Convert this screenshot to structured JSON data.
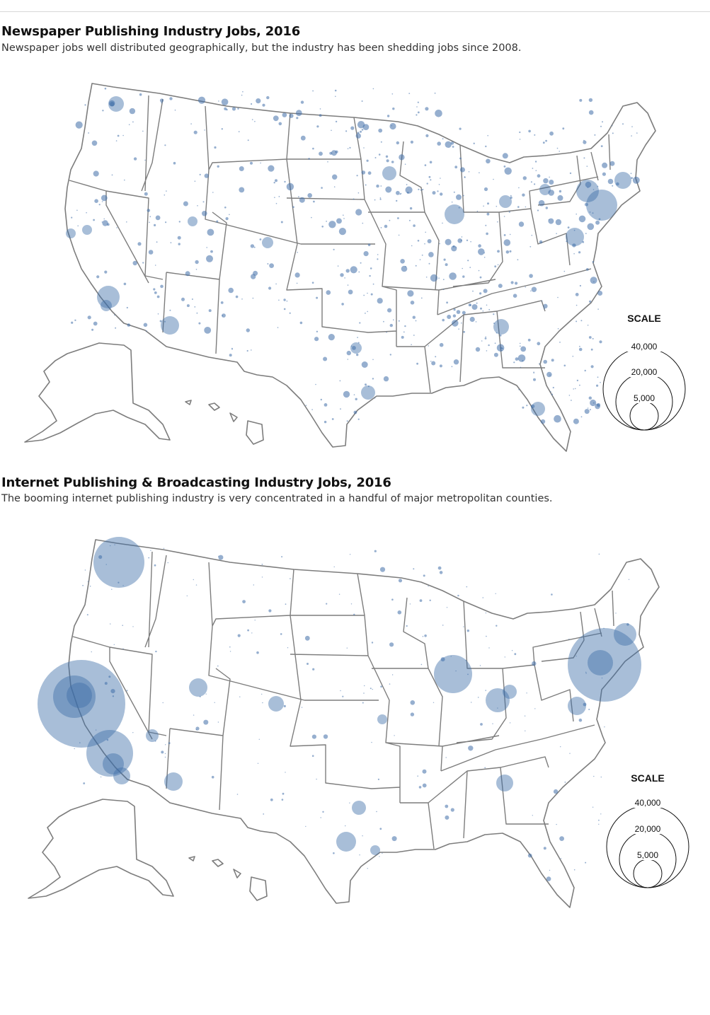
{
  "maps": [
    {
      "title": "Newspaper Publishing Industry Jobs, 2016",
      "subtitle": "Newspaper jobs well distributed geographically, but the industry has been shedding jobs since 2008.",
      "legend": {
        "heading": "SCALE",
        "labels": [
          "40,000",
          "20,000",
          "5,000"
        ]
      }
    },
    {
      "title": "Internet Publishing & Broadcasting Industry Jobs, 2016",
      "subtitle": "The booming internet publishing industry is very concentrated in a handful of major metropolitan counties.",
      "legend": {
        "heading": "SCALE",
        "labels": [
          "40,000",
          "20,000",
          "5,000"
        ]
      }
    }
  ],
  "colors": {
    "bubble": "#3f6ea8",
    "border": "#7d7d7d"
  }
}
